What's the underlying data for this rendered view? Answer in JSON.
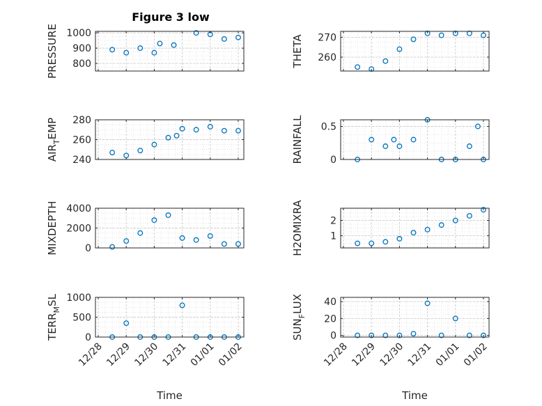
{
  "figure_title": "Figure 3 low",
  "colors": {
    "marker": "#0072BD",
    "axis": "#262626",
    "grid": "#dcdcdc",
    "background": "#ffffff"
  },
  "chart_data": [
    {
      "type": "scatter",
      "marker": "open-circle",
      "grid": true,
      "grid_minor": true,
      "title": "Figure 3 low",
      "ylabel": "PRESSURE",
      "xlabel": "",
      "xlim": [
        "12/28",
        "01/02"
      ],
      "ylim": [
        750,
        1010
      ],
      "yticks": [
        800,
        900,
        1000
      ],
      "xticks": [],
      "series": [
        {
          "x": [
            0.5,
            1.0,
            1.5,
            2.0,
            2.2,
            2.7,
            3.5,
            4.0,
            4.5,
            5.0
          ],
          "y": [
            890,
            870,
            900,
            870,
            930,
            920,
            1000,
            990,
            960,
            970
          ]
        }
      ]
    },
    {
      "type": "scatter",
      "marker": "open-circle",
      "grid": true,
      "grid_minor": true,
      "ylabel": "THETA",
      "xlabel": "",
      "xlim": [
        "12/28",
        "01/02"
      ],
      "ylim": [
        253,
        273
      ],
      "yticks": [
        260,
        270
      ],
      "xticks": [],
      "series": [
        {
          "x": [
            0.5,
            1.0,
            1.5,
            2.0,
            2.5,
            3.0,
            3.5,
            4.0,
            4.5,
            5.0
          ],
          "y": [
            255,
            254,
            258,
            264,
            269,
            272,
            271,
            272,
            272,
            271
          ]
        }
      ]
    },
    {
      "type": "scatter",
      "marker": "open-circle",
      "grid": true,
      "grid_minor": true,
      "ylabel": "AIR_TEMP",
      "xlabel": "",
      "xlim": [
        "12/28",
        "01/02"
      ],
      "ylim": [
        240,
        280
      ],
      "yticks": [
        240,
        260,
        280
      ],
      "xticks": [],
      "series": [
        {
          "x": [
            0.5,
            1.0,
            1.5,
            2.0,
            2.5,
            2.8,
            3.0,
            3.5,
            4.0,
            4.5,
            5.0
          ],
          "y": [
            247,
            244,
            249,
            255,
            262,
            264,
            271,
            270,
            273,
            269,
            269
          ]
        }
      ]
    },
    {
      "type": "scatter",
      "marker": "open-circle",
      "grid": true,
      "grid_minor": true,
      "ylabel": "RAINFALL",
      "xlabel": "",
      "xlim": [
        "12/28",
        "01/02"
      ],
      "ylim": [
        0,
        0.6
      ],
      "yticks": [
        0,
        0.5
      ],
      "xticks": [],
      "series": [
        {
          "x": [
            0.5,
            1.0,
            1.5,
            1.8,
            2.0,
            2.5,
            3.0,
            3.5,
            4.0,
            4.5,
            4.8,
            5.0
          ],
          "y": [
            0,
            0.3,
            0.2,
            0.3,
            0.2,
            0.3,
            0.6,
            0,
            0,
            0.2,
            0.5,
            0
          ]
        }
      ]
    },
    {
      "type": "scatter",
      "marker": "open-circle",
      "grid": true,
      "grid_minor": true,
      "ylabel": "MIXDEPTH",
      "xlabel": "",
      "xlim": [
        "12/28",
        "01/02"
      ],
      "ylim": [
        0,
        4000
      ],
      "yticks": [
        0,
        2000,
        4000
      ],
      "xticks": [],
      "series": [
        {
          "x": [
            0.5,
            1.0,
            1.5,
            2.0,
            2.5,
            3.0,
            3.5,
            4.0,
            4.5,
            5.0
          ],
          "y": [
            100,
            700,
            1500,
            2800,
            3300,
            1000,
            800,
            1200,
            400,
            400
          ]
        }
      ]
    },
    {
      "type": "scatter",
      "marker": "open-circle",
      "grid": true,
      "grid_minor": true,
      "ylabel": "H2OMIXRA",
      "xlabel": "",
      "xlim": [
        "12/28",
        "01/02"
      ],
      "ylim": [
        0.2,
        2.8
      ],
      "yticks": [
        1,
        2
      ],
      "xticks": [],
      "series": [
        {
          "x": [
            0.5,
            1.0,
            1.5,
            2.0,
            2.5,
            3.0,
            3.5,
            4.0,
            4.5,
            5.0
          ],
          "y": [
            0.5,
            0.5,
            0.6,
            0.8,
            1.2,
            1.4,
            1.7,
            2.0,
            2.3,
            2.7
          ]
        }
      ]
    },
    {
      "type": "scatter",
      "marker": "open-circle",
      "grid": true,
      "grid_minor": true,
      "ylabel": "TERR_MSL",
      "xlabel": "Time",
      "xlim": [
        "12/28",
        "01/02"
      ],
      "ylim": [
        0,
        1000
      ],
      "yticks": [
        0,
        500,
        1000
      ],
      "xticks": [
        "12/28",
        "12/29",
        "12/30",
        "12/31",
        "01/01",
        "01/02"
      ],
      "series": [
        {
          "x": [
            0.5,
            1.0,
            1.5,
            2.0,
            2.5,
            3.0,
            3.5,
            4.0,
            4.5,
            5.0
          ],
          "y": [
            0,
            350,
            0,
            0,
            0,
            800,
            0,
            0,
            0,
            0
          ]
        }
      ]
    },
    {
      "type": "scatter",
      "marker": "open-circle",
      "grid": true,
      "grid_minor": true,
      "ylabel": "SUN_FLUX",
      "xlabel": "Time",
      "xlim": [
        "12/28",
        "01/02"
      ],
      "ylim": [
        -2,
        45
      ],
      "yticks": [
        0,
        20,
        40
      ],
      "xticks": [
        "12/28",
        "12/29",
        "12/30",
        "12/31",
        "01/01",
        "01/02"
      ],
      "series": [
        {
          "x": [
            0.5,
            1.0,
            1.5,
            2.0,
            2.5,
            3.0,
            3.5,
            4.0,
            4.5,
            5.0
          ],
          "y": [
            0,
            0,
            0,
            0,
            2,
            38,
            0,
            20,
            0,
            0
          ]
        }
      ]
    }
  ]
}
